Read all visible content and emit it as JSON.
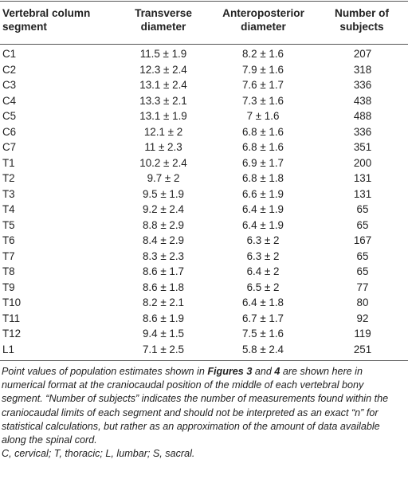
{
  "table": {
    "header": [
      "Vertebral column segment",
      "Transverse diameter",
      "Anteroposterior diameter",
      "Number of subjects"
    ],
    "rows": [
      [
        "C1",
        "11.5 ± 1.9",
        "8.2 ± 1.6",
        "207"
      ],
      [
        "C2",
        "12.3 ± 2.4",
        "7.9 ± 1.6",
        "318"
      ],
      [
        "C3",
        "13.1 ± 2.4",
        "7.6 ± 1.7",
        "336"
      ],
      [
        "C4",
        "13.3 ± 2.1",
        "7.3 ± 1.6",
        "438"
      ],
      [
        "C5",
        "13.1 ± 1.9",
        "7 ± 1.6",
        "488"
      ],
      [
        "C6",
        "12.1 ± 2",
        "6.8 ± 1.6",
        "336"
      ],
      [
        "C7",
        "11 ± 2.3",
        "6.8 ± 1.6",
        "351"
      ],
      [
        "T1",
        "10.2 ± 2.4",
        "6.9 ± 1.7",
        "200"
      ],
      [
        "T2",
        "9.7 ± 2",
        "6.8 ± 1.8",
        "131"
      ],
      [
        "T3",
        "9.5 ± 1.9",
        "6.6 ± 1.9",
        "131"
      ],
      [
        "T4",
        "9.2 ± 2.4",
        "6.4 ± 1.9",
        "65"
      ],
      [
        "T5",
        "8.8 ± 2.9",
        "6.4 ± 1.9",
        "65"
      ],
      [
        "T6",
        "8.4 ± 2.9",
        "6.3 ± 2",
        "167"
      ],
      [
        "T7",
        "8.3 ± 2.3",
        "6.3 ± 2",
        "65"
      ],
      [
        "T8",
        "8.6 ± 1.7",
        "6.4 ± 2",
        "65"
      ],
      [
        "T9",
        "8.6 ± 1.8",
        "6.5 ± 2",
        "77"
      ],
      [
        "T10",
        "8.2 ± 2.1",
        "6.4 ± 1.8",
        "80"
      ],
      [
        "T11",
        "8.6 ± 1.9",
        "6.7 ± 1.7",
        "92"
      ],
      [
        "T12",
        "9.4 ± 1.5",
        "7.5 ± 1.6",
        "119"
      ],
      [
        "L1",
        "7.1 ± 2.5",
        "5.8 ± 2.4",
        "251"
      ]
    ]
  },
  "footnote": {
    "parts": [
      "Point values of population estimates shown in ",
      "Figures 3",
      " and ",
      "4",
      " are shown here in numerical format at the craniocaudal position of the middle of each vertebral bony segment. “Number of subjects” indicates the number of measurements found within the craniocaudal limits of each segment and should not be interpreted as an exact “n” for statistical calculations, but rather as an approximation of the amount of data available along the spinal cord."
    ],
    "abbreviations": "C, cervical; T, thoracic; L, lumbar; S, sacral."
  }
}
